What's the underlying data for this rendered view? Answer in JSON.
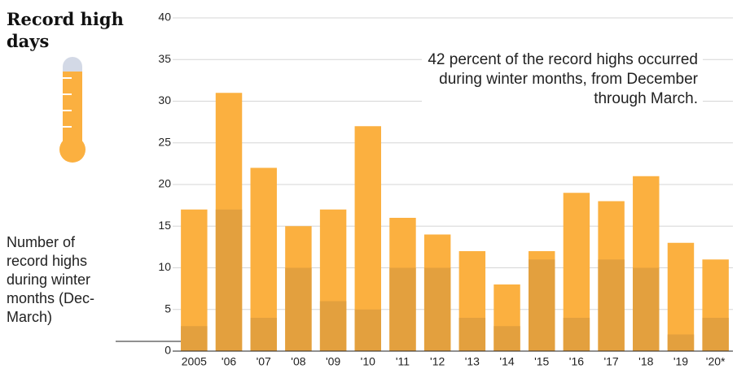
{
  "chart_data": {
    "type": "bar",
    "title": "Record high days",
    "annotation": "42 percent of the record highs occurred during winter months, from December through March.",
    "categories": [
      "2005",
      "'06",
      "'07",
      "'08",
      "'09",
      "'10",
      "'11",
      "'12",
      "'13",
      "'14",
      "'15",
      "'16",
      "'17",
      "'18",
      "'19",
      "'20*"
    ],
    "series": [
      {
        "color": "#fbb040",
        "values": [
          17,
          31,
          22,
          15,
          17,
          27,
          16,
          14,
          12,
          8,
          12,
          19,
          18,
          21,
          13,
          11
        ]
      },
      {
        "name": "Number of record highs during winter months (Dec-March)",
        "color": "#e3a03e",
        "values": [
          3,
          17,
          4,
          10,
          6,
          5,
          10,
          10,
          4,
          3,
          11,
          4,
          11,
          10,
          2,
          4
        ]
      }
    ],
    "ylim": [
      0,
      40
    ],
    "yticks": [
      0,
      5,
      10,
      15,
      20,
      25,
      30,
      35,
      40
    ],
    "grid": true
  }
}
